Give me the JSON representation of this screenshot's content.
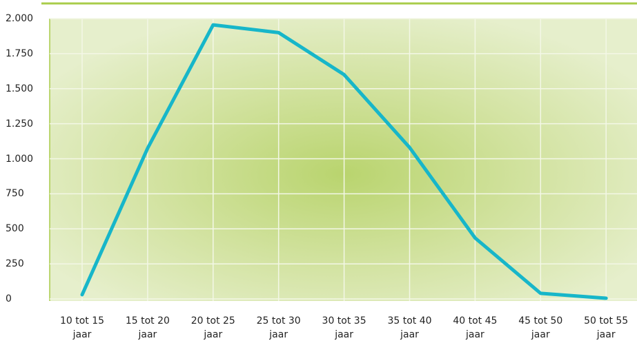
{
  "chart_data": {
    "type": "line",
    "categories": [
      "10 tot 15 jaar",
      "15 tot 20 jaar",
      "20 tot 25 jaar",
      "25 tot 30 jaar",
      "30 tot 35 jaar",
      "35 tot 40 jaar",
      "40 tot 45 jaar",
      "45 tot 50 jaar",
      "50 tot 55 jaar"
    ],
    "values": [
      30,
      1075,
      1955,
      1900,
      1600,
      1080,
      435,
      40,
      5
    ],
    "color": "#17b6c9",
    "ylim": [
      0,
      2000
    ],
    "yticks": [
      0,
      250,
      500,
      750,
      {
        "value": 1000,
        "label": "1.000"
      },
      {
        "value": 1250,
        "label": "1.250"
      },
      {
        "value": 1500,
        "label": "1.500"
      },
      {
        "value": 1750,
        "label": "1.750"
      },
      {
        "value": 2000,
        "label": "2.000"
      }
    ],
    "grid": true
  }
}
